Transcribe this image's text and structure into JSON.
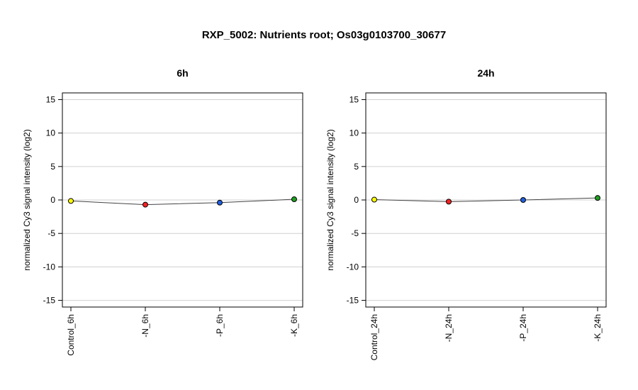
{
  "title": "RXP_5002: Nutrients root; Os03g0103700_30677",
  "chart_data": [
    {
      "type": "line",
      "title": "6h",
      "ylabel": "normalized Cy3 signal intensity (log2)",
      "ylim": [
        -16,
        16
      ],
      "yticks": [
        "15",
        "10",
        "5",
        "0",
        "-5",
        "-10",
        "-15"
      ],
      "ytick_values": [
        15,
        10,
        5,
        0,
        -5,
        -10,
        -15
      ],
      "grid": true,
      "categories": [
        "Control_6h",
        "-N_6h",
        "-P_6h",
        "-K_6h"
      ],
      "values": [
        -0.15,
        -0.7,
        -0.4,
        0.1
      ],
      "point_colors": [
        "#ffff00",
        "#ff2020",
        "#2060e0",
        "#20a020"
      ]
    },
    {
      "type": "line",
      "title": "24h",
      "ylabel": "normalized Cy3 signal intensity (log2)",
      "ylim": [
        -16,
        16
      ],
      "yticks": [
        "15",
        "10",
        "5",
        "0",
        "-5",
        "-10",
        "-15"
      ],
      "ytick_values": [
        15,
        10,
        5,
        0,
        -5,
        -10,
        -15
      ],
      "grid": true,
      "categories": [
        "Control_24h",
        "-N_24h",
        "-P_24h",
        "-K_24h"
      ],
      "values": [
        0.05,
        -0.25,
        0.0,
        0.3
      ],
      "point_colors": [
        "#ffff00",
        "#ff2020",
        "#2060e0",
        "#20a020"
      ]
    }
  ]
}
